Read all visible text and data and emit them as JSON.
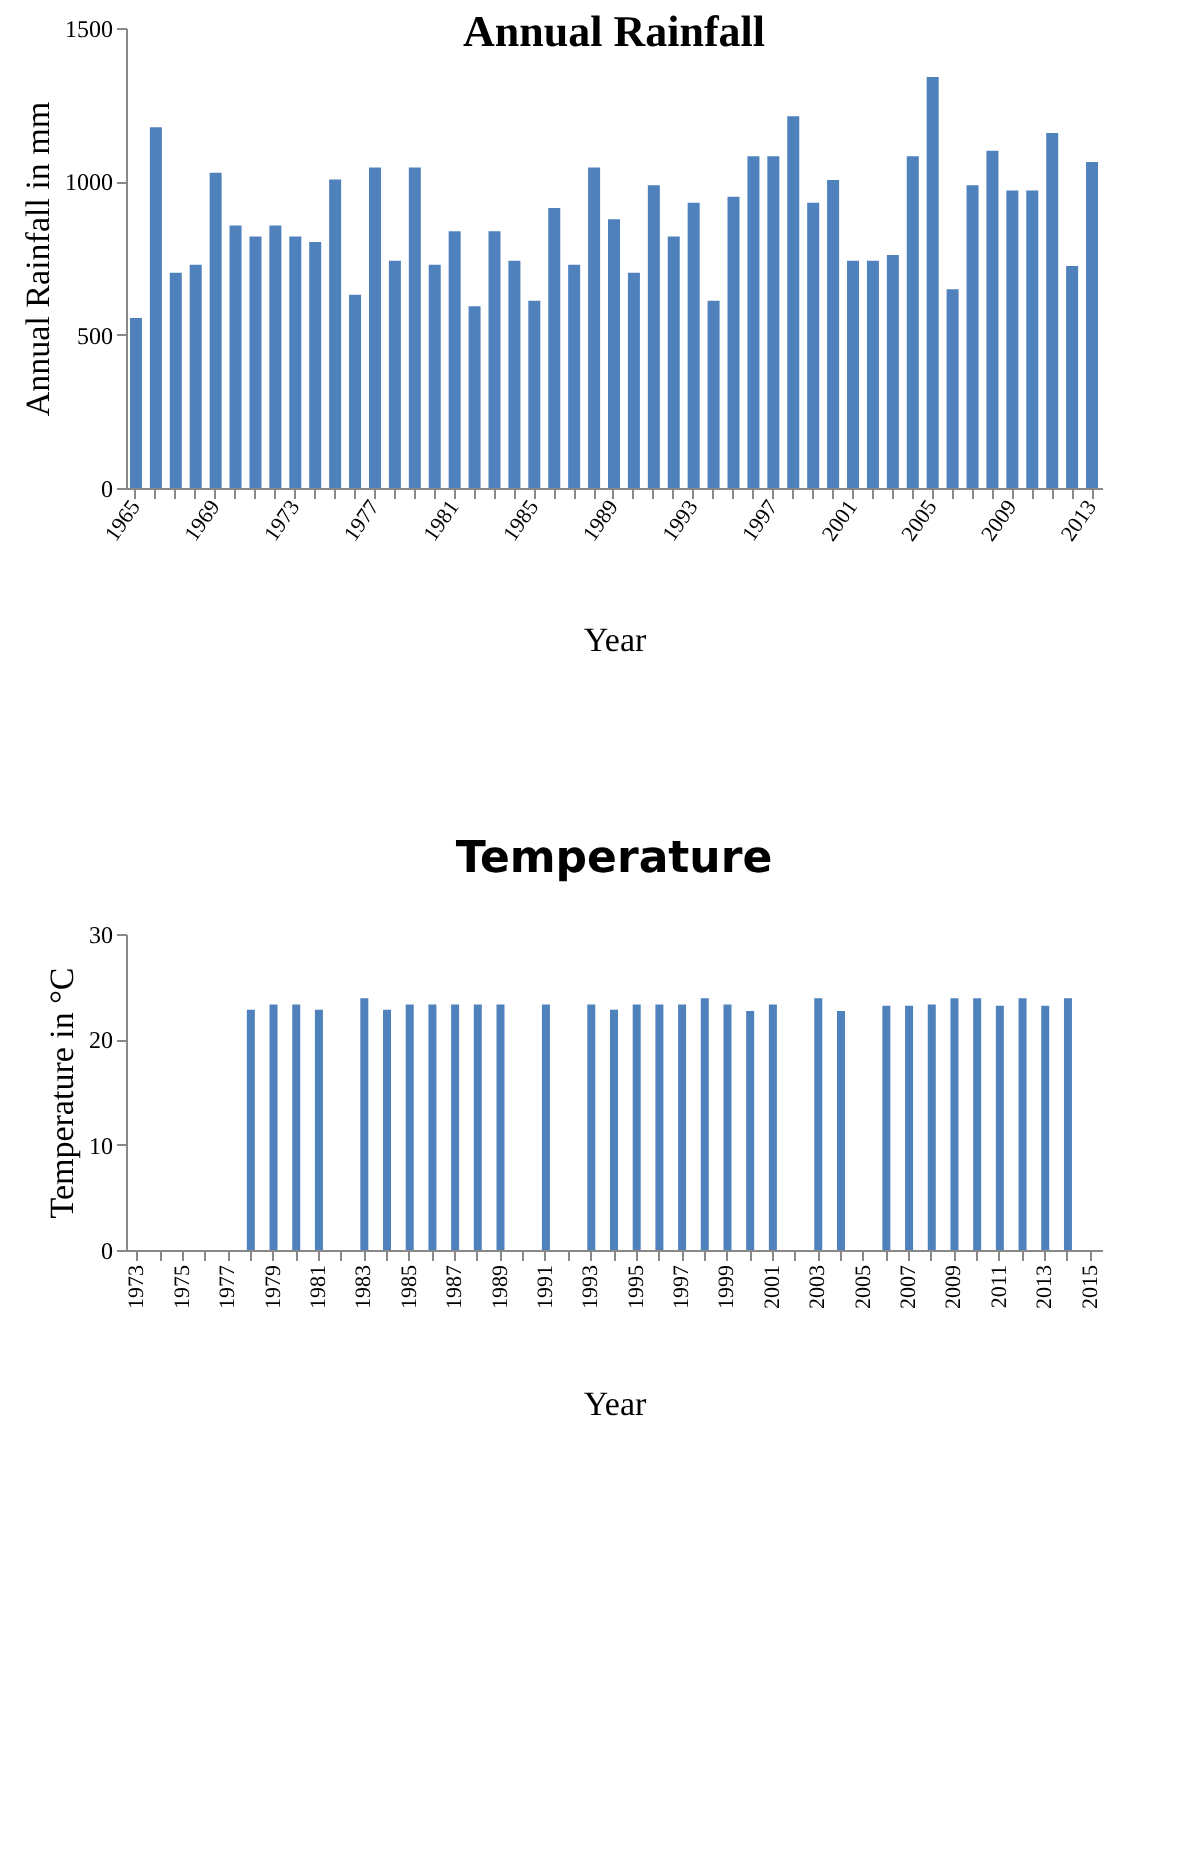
{
  "chart_data": [
    {
      "type": "bar",
      "title": "Annual Rainfall",
      "xlabel": "Year",
      "ylabel": "Annual Rainfall in mm",
      "categories": [
        "1965",
        null,
        null,
        null,
        "1969",
        null,
        null,
        null,
        "1973",
        null,
        null,
        null,
        "1977",
        null,
        null,
        null,
        "1981",
        null,
        null,
        null,
        "1985",
        null,
        null,
        null,
        "1989",
        null,
        null,
        null,
        "1993",
        null,
        null,
        null,
        "1997",
        null,
        null,
        null,
        "2001",
        null,
        null,
        null,
        "2005",
        null,
        null,
        null,
        "2009",
        null,
        null,
        null,
        "2013"
      ],
      "values": [
        554,
        1176,
        702,
        728,
        1028,
        856,
        820,
        856,
        820,
        802,
        1006,
        630,
        1045,
        741,
        1045,
        728,
        837,
        593,
        837,
        741,
        611,
        913,
        728,
        1045,
        876,
        702,
        987,
        820,
        930,
        611,
        950,
        1082,
        1082,
        1212,
        930,
        1004,
        741,
        741,
        760,
        1082,
        1340,
        648,
        987,
        1100,
        970,
        970,
        1158,
        724,
        1063
      ],
      "color": "#4f81bd",
      "ylim": [
        0,
        1500
      ],
      "yticks": [
        0,
        500,
        1000,
        1500
      ],
      "grid": false
    },
    {
      "type": "bar",
      "title": "Temperature",
      "xlabel": "Year",
      "ylabel": "Temperature in °C",
      "categories": [
        "1973",
        null,
        "1975",
        null,
        "1977",
        null,
        "1979",
        null,
        "1981",
        null,
        "1983",
        null,
        "1985",
        null,
        "1987",
        null,
        "1989",
        null,
        "1991",
        null,
        "1993",
        null,
        "1995",
        null,
        "1997",
        null,
        "1999",
        null,
        "2001",
        null,
        "2003",
        null,
        "2005",
        null,
        "2007",
        null,
        "2009",
        null,
        "2011",
        null,
        "2013",
        null,
        "2015"
      ],
      "values": [
        null,
        null,
        null,
        null,
        null,
        22.8,
        23.3,
        23.3,
        22.8,
        null,
        23.9,
        22.8,
        23.3,
        23.3,
        23.3,
        23.3,
        23.3,
        null,
        23.3,
        null,
        23.3,
        22.8,
        23.3,
        23.3,
        23.3,
        23.9,
        23.3,
        22.7,
        23.3,
        null,
        23.9,
        22.7,
        null,
        23.2,
        23.2,
        23.3,
        23.9,
        23.9,
        23.2,
        23.9,
        23.2,
        23.9,
        null
      ],
      "color": "#4f81bd",
      "ylim": [
        0,
        30
      ],
      "yticks": [
        0,
        10,
        20,
        30
      ],
      "grid": false
    }
  ]
}
